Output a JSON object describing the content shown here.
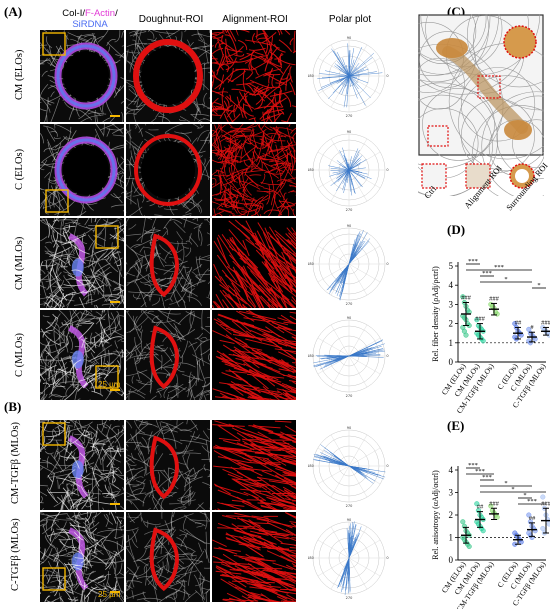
{
  "panels": {
    "A": "(A)",
    "B": "(B)",
    "C": "(C)",
    "D": "(D)",
    "E": "(E)"
  },
  "legend": {
    "col": "Col-I/",
    "factin": "F-Actin",
    "slash": "/",
    "sir": "SiRDNA",
    "colors": {
      "col": "#ffffff",
      "factin": "#e23ad6",
      "sir": "#4a6cf2"
    }
  },
  "columns": [
    "Doughnut-ROI",
    "Alignment-ROI",
    "Polar plot"
  ],
  "rows_A": [
    "CM (ELOs)",
    "C (ELOs)",
    "CM (MLOs)",
    "C (MLOs)"
  ],
  "rows_B": [
    "CM-TGFβ (MLOs)",
    "C-TGFβ (MLOs)"
  ],
  "scale_bar": "25 µm",
  "roi_labels": [
    "Ctrl",
    "Alignment ROI",
    "Surrounding ROI"
  ],
  "polar_ticks": [
    "90",
    "270",
    "0",
    "180",
    "60",
    "120",
    "30",
    "150",
    "210",
    "330",
    "240",
    "300"
  ],
  "chart_data": [
    {
      "type": "scatter",
      "title": "",
      "ylabel": "Rel. fiber density (ρAdj/ρctrl)",
      "ylim": [
        0,
        5
      ],
      "yticks": [
        0,
        1,
        2,
        3,
        4,
        5
      ],
      "categories": [
        "CM (ELOs)",
        "CM (MLOs)",
        "CM-TGFβ (MLOs)",
        "C (ELOs)",
        "C (MLOs)",
        "C-TGFβ (MLOs)"
      ],
      "means": [
        2.5,
        1.6,
        2.75,
        1.5,
        1.3,
        1.6
      ],
      "sd": [
        0.6,
        0.4,
        0.3,
        0.3,
        0.25,
        0.2
      ],
      "sig_marks": [
        "###",
        "###",
        "###",
        "##",
        "#",
        "###"
      ],
      "brackets": [
        {
          "from": 0,
          "to": 1,
          "label": "***"
        },
        {
          "from": 0,
          "to": 4,
          "label": "***"
        },
        {
          "from": 1,
          "to": 2,
          "label": "***"
        },
        {
          "from": 1,
          "to": 4,
          "label": "*"
        },
        {
          "from": 4,
          "to": 5,
          "label": "*"
        }
      ],
      "baseline": 1,
      "points": [
        [
          3.4,
          3.1,
          2.9,
          2.7,
          2.6,
          2.4,
          2.3,
          2.2,
          2.0,
          1.9,
          1.8,
          1.6,
          1.4
        ],
        [
          2.2,
          1.9,
          1.8,
          1.7,
          1.6,
          1.5,
          1.4,
          1.3,
          1.2,
          1.1
        ],
        [
          3.0,
          2.9,
          2.8,
          2.6,
          2.5
        ],
        [
          2.0,
          1.8,
          1.6,
          1.5,
          1.4,
          1.3,
          1.2
        ],
        [
          1.7,
          1.5,
          1.4,
          1.3,
          1.2,
          1.1,
          1.0
        ],
        [
          1.8,
          1.7,
          1.6,
          1.5,
          1.4
        ]
      ]
    },
    {
      "type": "scatter",
      "title": "",
      "ylabel": "Rel. anisotropy (αAdj/αctrl)",
      "ylim": [
        0,
        4
      ],
      "yticks": [
        0,
        1,
        2,
        3,
        4
      ],
      "categories": [
        "CM (ELOs)",
        "CM (MLOs)",
        "CM-TGFβ (MLOs)",
        "C (ELOs)",
        "C (MLOs)",
        "C-TGFβ (MLOs)"
      ],
      "means": [
        1.1,
        1.8,
        2.05,
        0.9,
        1.35,
        1.75
      ],
      "sd": [
        0.35,
        0.35,
        0.25,
        0.2,
        0.3,
        0.55
      ],
      "sig_marks": [
        "",
        "##",
        "###",
        "",
        "##",
        "###"
      ],
      "brackets": [
        {
          "from": 0,
          "to": 1,
          "label": "***"
        },
        {
          "from": 0,
          "to": 2,
          "label": "***"
        },
        {
          "from": 1,
          "to": 2,
          "label": "***"
        },
        {
          "from": 1,
          "to": 4,
          "label": "*"
        },
        {
          "from": 1,
          "to": 5,
          "label": "*"
        },
        {
          "from": 3,
          "to": 4,
          "label": "*"
        },
        {
          "from": 3,
          "to": 5,
          "label": "***"
        }
      ],
      "baseline": 1,
      "points": [
        [
          1.7,
          1.5,
          1.3,
          1.2,
          1.1,
          1.0,
          0.9,
          0.8,
          0.7,
          0.6
        ],
        [
          2.5,
          2.2,
          2.0,
          1.9,
          1.8,
          1.7,
          1.6,
          1.5,
          1.4,
          1.3
        ],
        [
          2.4,
          2.2,
          2.1,
          2.0,
          1.9
        ],
        [
          1.2,
          1.1,
          1.0,
          0.9,
          0.8,
          0.7
        ],
        [
          2.0,
          1.7,
          1.5,
          1.4,
          1.3,
          1.2,
          1.1,
          1.0
        ],
        [
          2.8,
          2.3,
          2.0,
          1.8,
          1.6,
          1.4,
          1.2
        ]
      ]
    }
  ],
  "colors": {
    "cm": "#3cc88c",
    "cm_mlo": "#2fd3a0",
    "cm_tgf": "#8cdc70",
    "c": "#5a7be8",
    "c_mlo": "#7e9cf0",
    "c_tgf": "#a8c2f4",
    "roi": "#e01010",
    "box": "#f5b700",
    "polar_line": "#3a78c8"
  }
}
